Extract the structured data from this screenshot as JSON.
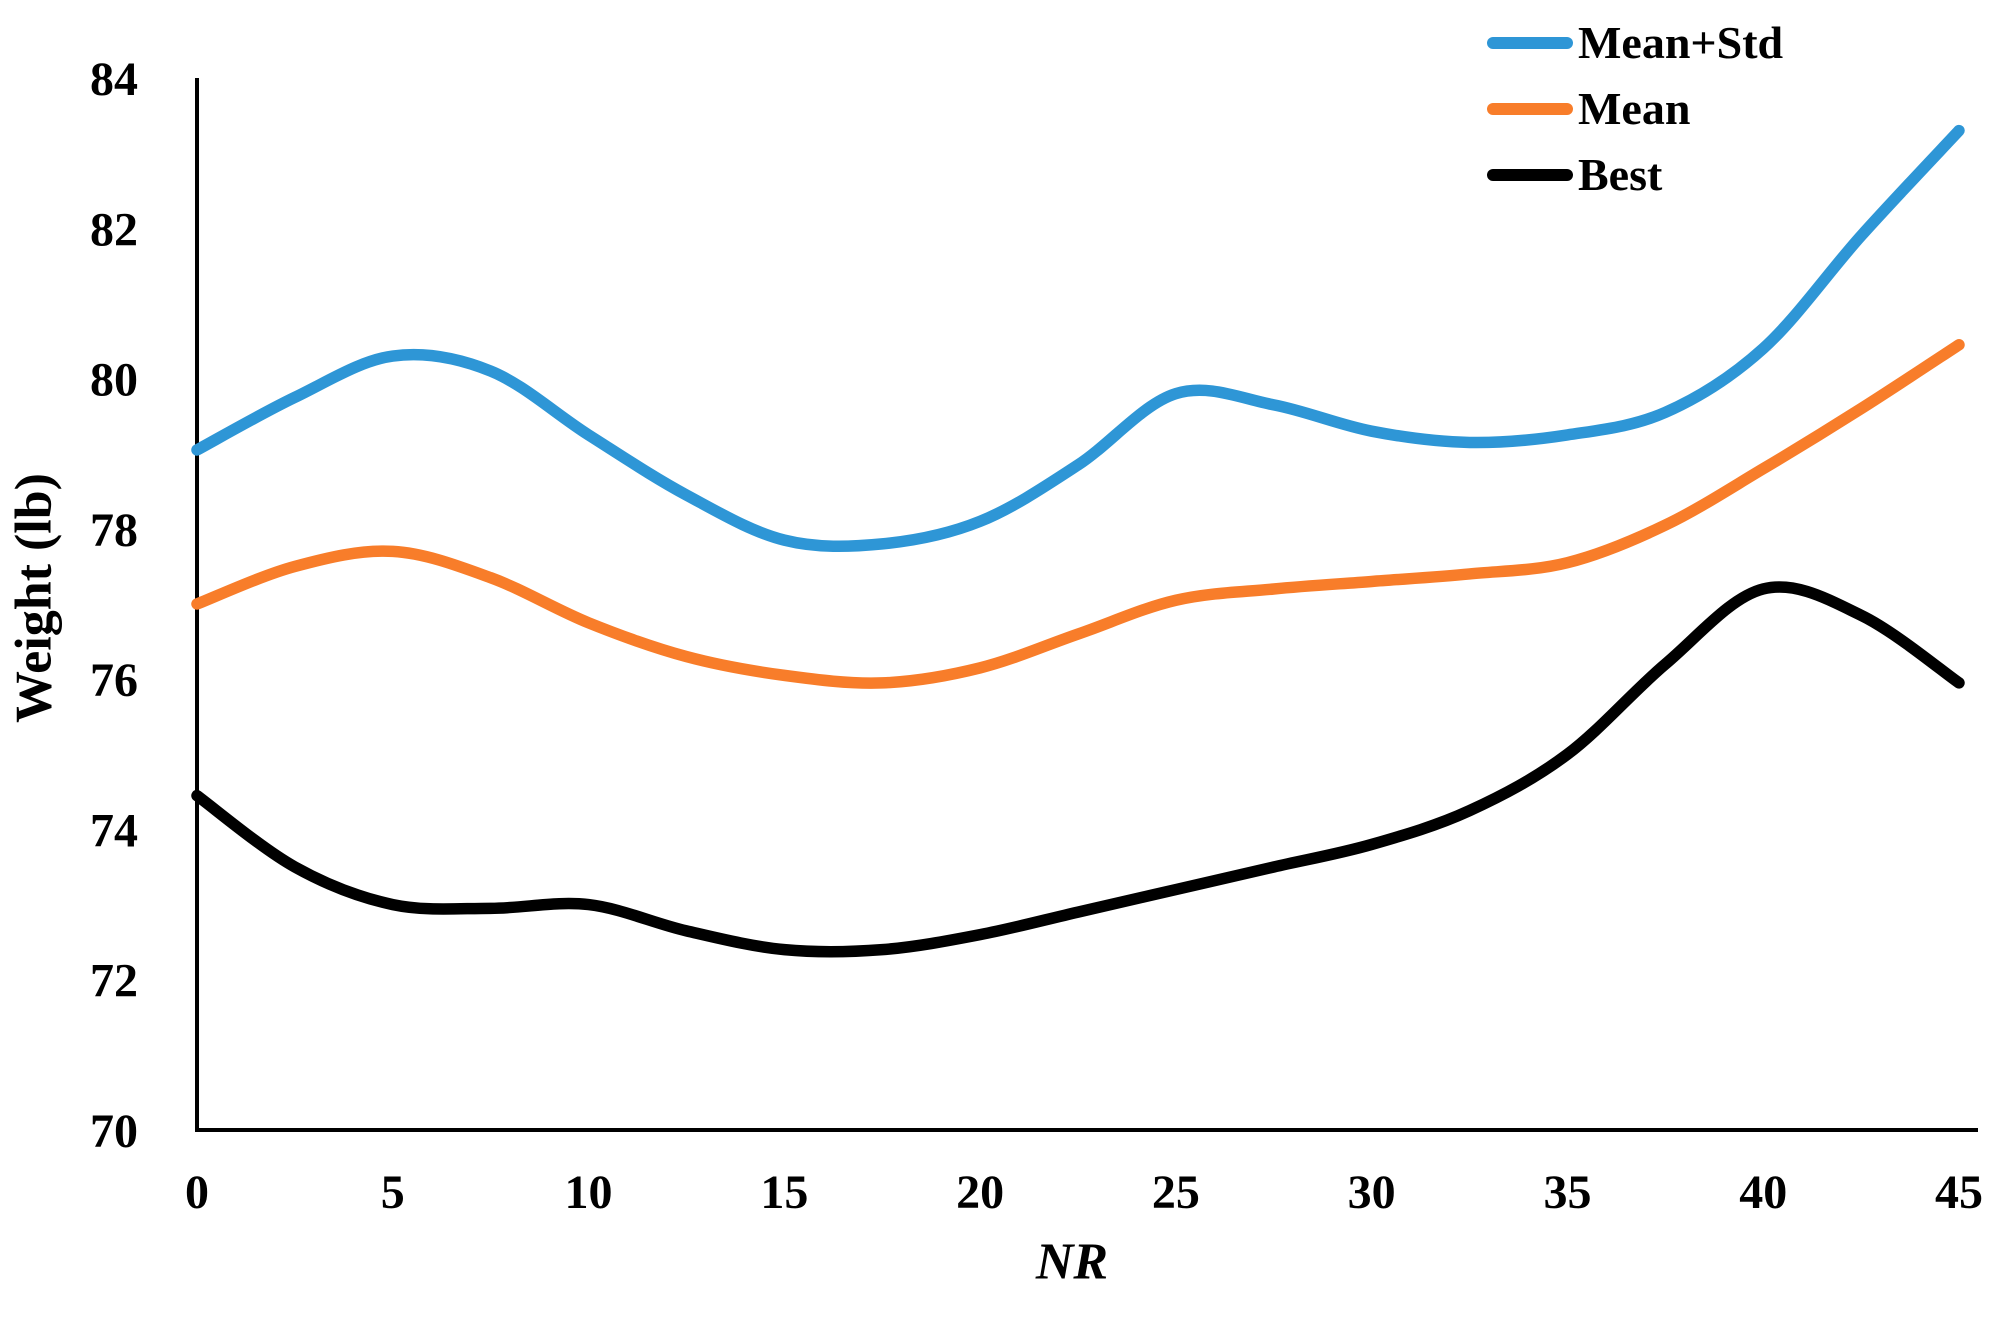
{
  "chart_data": {
    "type": "line",
    "title": "",
    "xlabel": "NR",
    "ylabel": "Weight (lb)",
    "xlim": [
      0,
      45
    ],
    "ylim": [
      70,
      84
    ],
    "x_ticks": [
      0,
      5,
      10,
      15,
      20,
      25,
      30,
      35,
      40,
      45
    ],
    "y_ticks": [
      70,
      72,
      74,
      76,
      78,
      80,
      82,
      84
    ],
    "grid": false,
    "legend_position": "top-right",
    "axis_color": "#000000",
    "x": [
      0,
      2.5,
      5,
      7.5,
      10,
      12.5,
      15,
      17.5,
      20,
      22.5,
      25,
      27.5,
      30,
      32.5,
      35,
      37.5,
      40,
      42.5,
      45
    ],
    "series": [
      {
        "name": "Mean+Std",
        "color": "#2E96D6",
        "values": [
          79.05,
          79.75,
          80.3,
          80.1,
          79.25,
          78.45,
          77.85,
          77.8,
          78.1,
          78.85,
          79.8,
          79.65,
          79.3,
          79.15,
          79.25,
          79.55,
          80.4,
          81.9,
          83.3
        ]
      },
      {
        "name": "Mean",
        "color": "#F87D2A",
        "values": [
          77.0,
          77.5,
          77.7,
          77.35,
          76.75,
          76.3,
          76.05,
          75.95,
          76.15,
          76.6,
          77.05,
          77.2,
          77.3,
          77.4,
          77.55,
          78.05,
          78.8,
          79.6,
          80.45
        ]
      },
      {
        "name": "Best",
        "color": "#000000",
        "values": [
          74.45,
          73.5,
          73.0,
          72.95,
          73.0,
          72.65,
          72.4,
          72.4,
          72.6,
          72.9,
          73.2,
          73.5,
          73.8,
          74.25,
          75.0,
          76.2,
          77.2,
          76.85,
          75.95
        ]
      }
    ]
  }
}
